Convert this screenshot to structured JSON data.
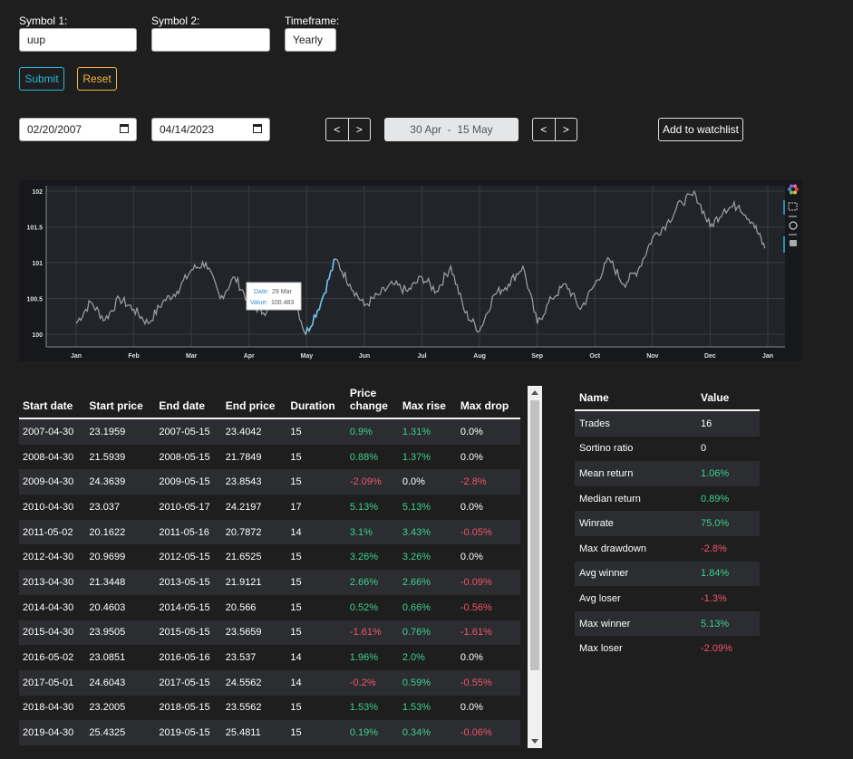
{
  "form": {
    "symbol1_label": "Symbol 1:",
    "symbol1_value": "uup",
    "symbol2_label": "Symbol 2:",
    "symbol2_value": "",
    "timeframe_label": "Timeframe:",
    "timeframe_value": "Yearly",
    "submit_label": "Submit",
    "reset_label": "Reset"
  },
  "dates": {
    "start_date": "02/20/2007",
    "end_date": "04/14/2023",
    "prev_label": "<",
    "next_label": ">",
    "range_display": "30 Apr  -  15 May",
    "watchlist_label": "Add to watchlist"
  },
  "chart_data": {
    "type": "line",
    "x_ticks": [
      "Jan",
      "Feb",
      "Mar",
      "Apr",
      "May",
      "Jun",
      "Jul",
      "Aug",
      "Sep",
      "Oct",
      "Nov",
      "Dec",
      "Jan"
    ],
    "y_ticks": [
      "100",
      "100.5",
      "101",
      "101.5",
      "102"
    ],
    "ylim": [
      99.85,
      102.05
    ],
    "grid": true,
    "line_color": "#9a9a9a",
    "highlight_color": "#6cc3ec",
    "highlight_range_month": [
      3.98,
      4.5
    ],
    "tooltip": {
      "date_label": "Date:",
      "date_value": "29 Mar",
      "value_label": "Value:",
      "value_value": "100.483"
    },
    "series_x": [
      0,
      0.25,
      0.5,
      0.75,
      1,
      1.25,
      1.5,
      1.75,
      2,
      2.25,
      2.5,
      2.75,
      3,
      3.25,
      3.5,
      3.75,
      3.98,
      4.25,
      4.5,
      4.75,
      5,
      5.25,
      5.5,
      5.75,
      6,
      6.25,
      6.5,
      6.75,
      7,
      7.25,
      7.5,
      7.75,
      8,
      8.25,
      8.5,
      8.75,
      9,
      9.25,
      9.5,
      9.75,
      10,
      10.25,
      10.5,
      10.75,
      11,
      11.25,
      11.5,
      11.75,
      11.95
    ],
    "series_y": [
      100.15,
      100.45,
      100.2,
      100.5,
      100.35,
      100.15,
      100.45,
      100.6,
      100.9,
      101.0,
      100.5,
      100.8,
      100.45,
      100.3,
      100.55,
      100.6,
      100.0,
      100.45,
      101.05,
      100.7,
      100.4,
      100.55,
      100.7,
      100.6,
      100.8,
      100.6,
      100.95,
      100.3,
      100.05,
      100.55,
      100.7,
      100.95,
      100.15,
      100.5,
      100.7,
      100.35,
      100.7,
      101.05,
      100.7,
      100.9,
      101.35,
      101.55,
      101.85,
      101.95,
      101.5,
      101.75,
      101.8,
      101.55,
      101.2
    ],
    "toolbar_icons": [
      "bokeh-logo-icon",
      "box-zoom-icon",
      "reset-icon",
      "hover-icon"
    ]
  },
  "trades": {
    "headers": [
      "Start date",
      "Start price",
      "End date",
      "End price",
      "Duration",
      "Price change",
      "Max rise",
      "Max drop"
    ],
    "rows": [
      [
        "2007-04-30",
        "23.1959",
        "2007-05-15",
        "23.4042",
        "15",
        "0.9%",
        "1.31%",
        "0.0%"
      ],
      [
        "2008-04-30",
        "21.5939",
        "2008-05-15",
        "21.7849",
        "15",
        "0.88%",
        "1.37%",
        "0.0%"
      ],
      [
        "2009-04-30",
        "24.3639",
        "2009-05-15",
        "23.8543",
        "15",
        "-2.09%",
        "0.0%",
        "-2.8%"
      ],
      [
        "2010-04-30",
        "23.037",
        "2010-05-17",
        "24.2197",
        "17",
        "5.13%",
        "5.13%",
        "0.0%"
      ],
      [
        "2011-05-02",
        "20.1622",
        "2011-05-16",
        "20.7872",
        "14",
        "3.1%",
        "3.43%",
        "-0.05%"
      ],
      [
        "2012-04-30",
        "20.9699",
        "2012-05-15",
        "21.6525",
        "15",
        "3.26%",
        "3.26%",
        "0.0%"
      ],
      [
        "2013-04-30",
        "21.3448",
        "2013-05-15",
        "21.9121",
        "15",
        "2.66%",
        "2.66%",
        "-0.09%"
      ],
      [
        "2014-04-30",
        "20.4603",
        "2014-05-15",
        "20.566",
        "15",
        "0.52%",
        "0.66%",
        "-0.56%"
      ],
      [
        "2015-04-30",
        "23.9505",
        "2015-05-15",
        "23.5659",
        "15",
        "-1.61%",
        "0.76%",
        "-1.61%"
      ],
      [
        "2016-05-02",
        "23.0851",
        "2016-05-16",
        "23.537",
        "14",
        "1.96%",
        "2.0%",
        "0.0%"
      ],
      [
        "2017-05-01",
        "24.6043",
        "2017-05-15",
        "24.5562",
        "14",
        "-0.2%",
        "0.59%",
        "-0.55%"
      ],
      [
        "2018-04-30",
        "23.2005",
        "2018-05-15",
        "23.5562",
        "15",
        "1.53%",
        "1.53%",
        "0.0%"
      ],
      [
        "2019-04-30",
        "25.4325",
        "2019-05-15",
        "25.4811",
        "15",
        "0.19%",
        "0.34%",
        "-0.06%"
      ]
    ]
  },
  "stats": {
    "headers": [
      "Name",
      "Value"
    ],
    "rows": [
      [
        "Trades",
        "16"
      ],
      [
        "Sortino ratio",
        "0"
      ],
      [
        "Mean return",
        "1.06%"
      ],
      [
        "Median return",
        "0.89%"
      ],
      [
        "Winrate",
        "75.0%"
      ],
      [
        "Max drawdown",
        "-2.8%"
      ],
      [
        "Avg winner",
        "1.84%"
      ],
      [
        "Avg loser",
        "-1.3%"
      ],
      [
        "Max winner",
        "5.13%"
      ],
      [
        "Max loser",
        "-2.09%"
      ]
    ]
  },
  "colors": {
    "positive": "#3ecf8e",
    "negative": "#f0556a",
    "submit": "#29b6d8",
    "reset": "#f0b63a"
  }
}
